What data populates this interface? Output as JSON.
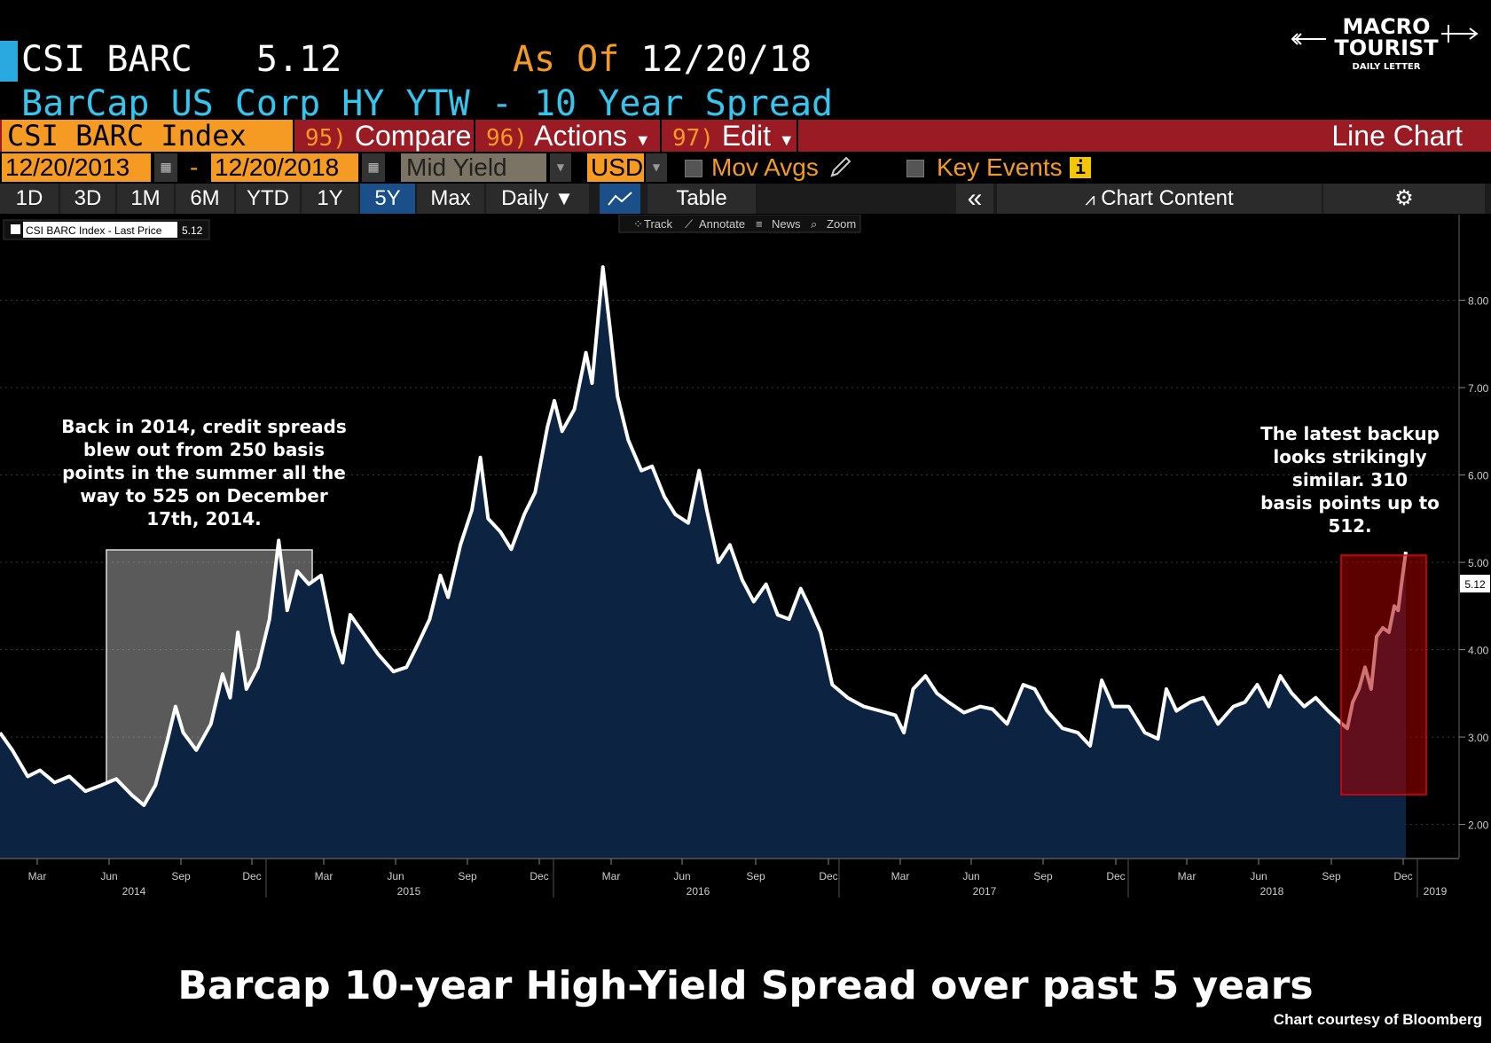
{
  "header": {
    "ticker": "CSI BARC",
    "price": "5.12",
    "as_of_label": "As Of",
    "as_of_date": "12/20/18",
    "description": "BarCap US Corp HY YTW - 10 Year Spread"
  },
  "menu": {
    "index_name": "CSI BARC Index",
    "items": [
      {
        "num": "95)",
        "label": "Compare"
      },
      {
        "num": "96)",
        "label": "Actions"
      },
      {
        "num": "97)",
        "label": "Edit"
      }
    ],
    "chart_type": "Line Chart"
  },
  "controls": {
    "start_date": "12/20/2013",
    "dash": "-",
    "end_date": "12/20/2018",
    "field": "Mid Yield",
    "currency": "USD",
    "mov_avgs": "Mov Avgs",
    "key_events": "Key Events"
  },
  "toolbar": {
    "ranges": [
      "1D",
      "3D",
      "1M",
      "6M",
      "YTD",
      "1Y",
      "5Y",
      "Max"
    ],
    "active_range": "5Y",
    "frequency": "Daily",
    "table": "Table",
    "collapse": "«",
    "chart_content": "Chart Content"
  },
  "chart_tools": [
    "Track",
    "Annotate",
    "News",
    "Zoom"
  ],
  "logo": {
    "line1": "MACRO",
    "line2": "TOURIST",
    "line3": "DAILY LETTER"
  },
  "annotations": {
    "left": [
      "Back in 2014, credit spreads",
      "blew out from 250 basis",
      "points in the summer all the",
      "way to 525 on December",
      "17th, 2014."
    ],
    "right": [
      "The latest backup",
      "looks strikingly",
      "similar.  310",
      "basis points up to",
      "512."
    ]
  },
  "caption": "Barcap 10-year High-Yield Spread over past 5 years",
  "courtesy": "Chart courtesy of Bloomberg",
  "colors": {
    "line": "#ffffff",
    "fill": "#0c2341",
    "accent_orange": "#f59a23",
    "cyan": "#33c6ef",
    "highlight_red": "#8b0000"
  },
  "chart_data": {
    "type": "area",
    "legend": {
      "label": "CSI BARC Index - Last Price",
      "value": "5.12",
      "position": "top-left"
    },
    "last_value_label": "5.12",
    "y_ticks": [
      "2.00",
      "3.00",
      "4.00",
      "5.00",
      "6.00",
      "7.00",
      "8.00"
    ],
    "ylim": [
      1.62,
      8.98
    ],
    "x_month_ticks": [
      "Mar",
      "Jun",
      "Sep",
      "Dec",
      "Mar",
      "Jun",
      "Sep",
      "Dec",
      "Mar",
      "Jun",
      "Sep",
      "Dec",
      "Mar",
      "Jun",
      "Sep",
      "Dec",
      "Mar",
      "Jun",
      "Sep",
      "Dec"
    ],
    "x_year_labels": [
      "2014",
      "2015",
      "2016",
      "2017",
      "2018",
      "2019"
    ],
    "x_start": "2013-12-20",
    "x_end": "2018-12-20",
    "grid": true,
    "series": [
      {
        "name": "CSI BARC Index - Last Price",
        "points": [
          [
            "2013-12-20",
            3.05
          ],
          [
            "2014-01-05",
            2.85
          ],
          [
            "2014-01-25",
            2.55
          ],
          [
            "2014-02-10",
            2.62
          ],
          [
            "2014-03-01",
            2.48
          ],
          [
            "2014-03-20",
            2.55
          ],
          [
            "2014-04-10",
            2.38
          ],
          [
            "2014-05-01",
            2.45
          ],
          [
            "2014-05-20",
            2.52
          ],
          [
            "2014-06-10",
            2.33
          ],
          [
            "2014-06-25",
            2.22
          ],
          [
            "2014-07-10",
            2.45
          ],
          [
            "2014-07-25",
            2.95
          ],
          [
            "2014-08-05",
            3.35
          ],
          [
            "2014-08-15",
            3.05
          ],
          [
            "2014-09-01",
            2.85
          ],
          [
            "2014-09-20",
            3.15
          ],
          [
            "2014-10-05",
            3.72
          ],
          [
            "2014-10-15",
            3.45
          ],
          [
            "2014-10-25",
            4.2
          ],
          [
            "2014-11-05",
            3.55
          ],
          [
            "2014-11-20",
            3.8
          ],
          [
            "2014-12-05",
            4.35
          ],
          [
            "2014-12-17",
            5.25
          ],
          [
            "2014-12-28",
            4.45
          ],
          [
            "2015-01-10",
            4.9
          ],
          [
            "2015-01-25",
            4.75
          ],
          [
            "2015-02-10",
            4.85
          ],
          [
            "2015-02-25",
            4.2
          ],
          [
            "2015-03-10",
            3.85
          ],
          [
            "2015-03-20",
            4.4
          ],
          [
            "2015-04-05",
            4.2
          ],
          [
            "2015-04-25",
            3.95
          ],
          [
            "2015-05-15",
            3.75
          ],
          [
            "2015-06-01",
            3.8
          ],
          [
            "2015-06-15",
            4.05
          ],
          [
            "2015-07-01",
            4.35
          ],
          [
            "2015-07-15",
            4.85
          ],
          [
            "2015-07-25",
            4.6
          ],
          [
            "2015-08-10",
            5.2
          ],
          [
            "2015-08-25",
            5.6
          ],
          [
            "2015-09-05",
            6.2
          ],
          [
            "2015-09-15",
            5.5
          ],
          [
            "2015-10-01",
            5.35
          ],
          [
            "2015-10-15",
            5.15
          ],
          [
            "2015-11-01",
            5.55
          ],
          [
            "2015-11-15",
            5.8
          ],
          [
            "2015-12-01",
            6.55
          ],
          [
            "2015-12-10",
            6.85
          ],
          [
            "2015-12-20",
            6.5
          ],
          [
            "2016-01-05",
            6.75
          ],
          [
            "2016-01-20",
            7.4
          ],
          [
            "2016-01-28",
            7.05
          ],
          [
            "2016-02-05",
            7.8
          ],
          [
            "2016-02-11",
            8.38
          ],
          [
            "2016-02-20",
            7.7
          ],
          [
            "2016-03-01",
            6.9
          ],
          [
            "2016-03-15",
            6.4
          ],
          [
            "2016-04-01",
            6.05
          ],
          [
            "2016-04-15",
            6.1
          ],
          [
            "2016-05-01",
            5.75
          ],
          [
            "2016-05-15",
            5.55
          ],
          [
            "2016-06-01",
            5.45
          ],
          [
            "2016-06-15",
            6.05
          ],
          [
            "2016-06-25",
            5.6
          ],
          [
            "2016-07-10",
            5.0
          ],
          [
            "2016-07-25",
            5.2
          ],
          [
            "2016-08-10",
            4.8
          ],
          [
            "2016-08-25",
            4.55
          ],
          [
            "2016-09-10",
            4.75
          ],
          [
            "2016-09-25",
            4.4
          ],
          [
            "2016-10-10",
            4.35
          ],
          [
            "2016-10-25",
            4.7
          ],
          [
            "2016-11-05",
            4.5
          ],
          [
            "2016-11-20",
            4.2
          ],
          [
            "2016-12-05",
            3.6
          ],
          [
            "2016-12-25",
            3.45
          ],
          [
            "2017-01-15",
            3.35
          ],
          [
            "2017-02-05",
            3.3
          ],
          [
            "2017-02-25",
            3.25
          ],
          [
            "2017-03-08",
            3.05
          ],
          [
            "2017-03-20",
            3.55
          ],
          [
            "2017-04-05",
            3.7
          ],
          [
            "2017-04-20",
            3.5
          ],
          [
            "2017-05-05",
            3.4
          ],
          [
            "2017-05-25",
            3.28
          ],
          [
            "2017-06-15",
            3.35
          ],
          [
            "2017-07-01",
            3.32
          ],
          [
            "2017-07-20",
            3.15
          ],
          [
            "2017-08-10",
            3.6
          ],
          [
            "2017-08-25",
            3.55
          ],
          [
            "2017-09-10",
            3.3
          ],
          [
            "2017-09-30",
            3.1
          ],
          [
            "2017-10-20",
            3.05
          ],
          [
            "2017-11-05",
            2.9
          ],
          [
            "2017-11-20",
            3.65
          ],
          [
            "2017-12-05",
            3.35
          ],
          [
            "2017-12-25",
            3.35
          ],
          [
            "2018-01-15",
            3.05
          ],
          [
            "2018-02-01",
            2.98
          ],
          [
            "2018-02-12",
            3.55
          ],
          [
            "2018-02-25",
            3.3
          ],
          [
            "2018-03-15",
            3.4
          ],
          [
            "2018-04-01",
            3.45
          ],
          [
            "2018-04-20",
            3.15
          ],
          [
            "2018-05-10",
            3.35
          ],
          [
            "2018-05-25",
            3.4
          ],
          [
            "2018-06-10",
            3.6
          ],
          [
            "2018-06-25",
            3.35
          ],
          [
            "2018-07-10",
            3.7
          ],
          [
            "2018-07-25",
            3.5
          ],
          [
            "2018-08-10",
            3.35
          ],
          [
            "2018-08-25",
            3.45
          ],
          [
            "2018-09-10",
            3.3
          ],
          [
            "2018-09-28",
            3.15
          ],
          [
            "2018-10-05",
            3.1
          ],
          [
            "2018-10-12",
            3.4
          ],
          [
            "2018-10-20",
            3.55
          ],
          [
            "2018-10-28",
            3.8
          ],
          [
            "2018-11-05",
            3.55
          ],
          [
            "2018-11-12",
            4.15
          ],
          [
            "2018-11-20",
            4.25
          ],
          [
            "2018-11-28",
            4.2
          ],
          [
            "2018-12-05",
            4.5
          ],
          [
            "2018-12-10",
            4.45
          ],
          [
            "2018-12-15",
            4.8
          ],
          [
            "2018-12-20",
            5.12
          ]
        ]
      }
    ]
  }
}
